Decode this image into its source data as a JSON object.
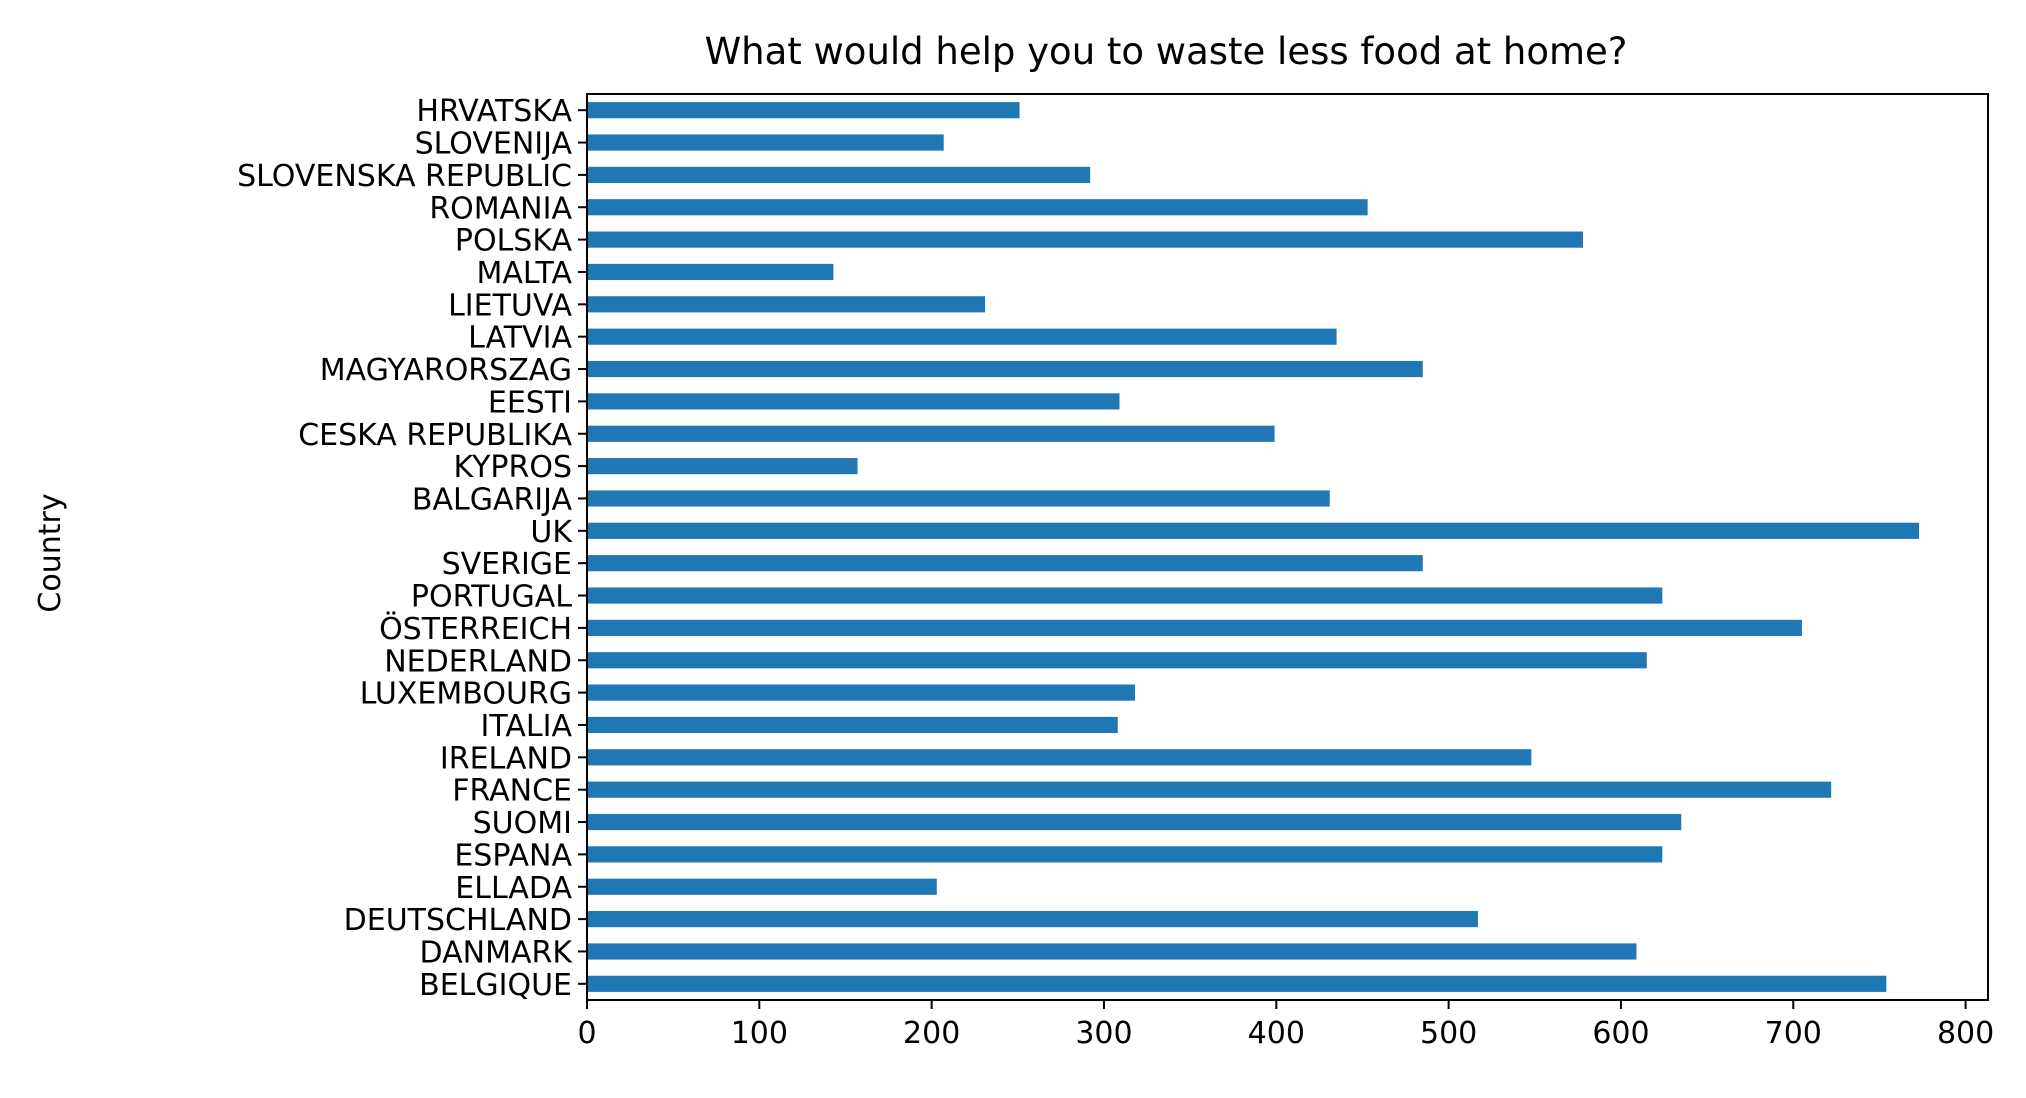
{
  "chart_data": {
    "type": "bar",
    "orientation": "horizontal",
    "title": "What would help you to waste less food at home?",
    "xlabel": "",
    "ylabel": "Country",
    "xlim": [
      0,
      813
    ],
    "xticks": [
      0,
      100,
      200,
      300,
      400,
      500,
      600,
      700,
      800
    ],
    "color": "#1f77b4",
    "grid": false,
    "categories": [
      "BELGIQUE",
      "DANMARK",
      "DEUTSCHLAND",
      "ELLADA",
      "ESPANA",
      "SUOMI",
      "FRANCE",
      "IRELAND",
      "ITALIA",
      "LUXEMBOURG",
      "NEDERLAND",
      "ÖSTERREICH",
      "PORTUGAL",
      "SVERIGE",
      "UK",
      "BALGARIJA",
      "KYPROS",
      "CESKA REPUBLIKA",
      "EESTI",
      "MAGYARORSZAG",
      "LATVIA",
      "LIETUVA",
      "MALTA",
      "POLSKA",
      "ROMANIA",
      "SLOVENSKA REPUBLIC",
      "SLOVENIJA",
      "HRVATSKA"
    ],
    "values": [
      754,
      609,
      517,
      203,
      624,
      635,
      722,
      548,
      308,
      318,
      615,
      705,
      624,
      485,
      773,
      431,
      157,
      399,
      309,
      485,
      435,
      231,
      143,
      578,
      453,
      292,
      207,
      251
    ]
  }
}
